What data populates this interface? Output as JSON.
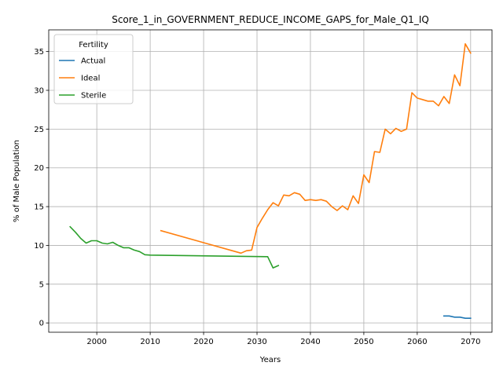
{
  "chart_data": {
    "type": "line",
    "title": "Score_1_in_GOVERNMENT_REDUCE_INCOME_GAPS_for_Male_Q1_IQ",
    "xlabel": "Years",
    "ylabel": "% of Male Population",
    "xlim": [
      1991,
      2074
    ],
    "ylim": [
      -1.2,
      37.8
    ],
    "x_ticks": [
      2000,
      2010,
      2020,
      2030,
      2040,
      2050,
      2060,
      2070
    ],
    "y_ticks": [
      0,
      5,
      10,
      15,
      20,
      25,
      30,
      35
    ],
    "grid": true,
    "legend": {
      "title": "Fertility",
      "placement": "top-left"
    },
    "series": [
      {
        "name": "Actual",
        "color": "#1f77b4",
        "x": [
          2065,
          2066,
          2067,
          2068,
          2069,
          2070
        ],
        "y": [
          0.9,
          0.9,
          0.75,
          0.75,
          0.6,
          0.6
        ]
      },
      {
        "name": "Ideal",
        "color": "#ff7f0e",
        "x": [
          2012,
          2027,
          2028,
          2029,
          2030,
          2031,
          2032,
          2033,
          2034,
          2035,
          2036,
          2037,
          2038,
          2039,
          2040,
          2041,
          2042,
          2043,
          2044,
          2045,
          2046,
          2047,
          2048,
          2049,
          2050,
          2051,
          2052,
          2053,
          2054,
          2055,
          2056,
          2057,
          2058,
          2059,
          2060,
          2061,
          2062,
          2063,
          2064,
          2065,
          2066,
          2067,
          2068,
          2069,
          2070
        ],
        "y": [
          11.9,
          9.0,
          9.3,
          9.4,
          12.3,
          13.5,
          14.6,
          15.5,
          15.1,
          16.5,
          16.4,
          16.8,
          16.6,
          15.8,
          15.9,
          15.8,
          15.9,
          15.7,
          15.0,
          14.5,
          15.1,
          14.6,
          16.4,
          15.4,
          19.1,
          18.1,
          22.1,
          22.0,
          25.0,
          24.4,
          25.1,
          24.7,
          25.0,
          29.7,
          29.0,
          28.8,
          28.6,
          28.6,
          28.0,
          29.2,
          28.3,
          32.0,
          30.6,
          36.0,
          34.8
        ]
      },
      {
        "name": "Sterile",
        "color": "#2ca02c",
        "x": [
          1995,
          1996,
          1997,
          1998,
          1999,
          2000,
          2001,
          2002,
          2003,
          2004,
          2005,
          2006,
          2007,
          2008,
          2009,
          2010,
          2032,
          2033,
          2034
        ],
        "y": [
          12.4,
          11.7,
          10.9,
          10.3,
          10.6,
          10.6,
          10.3,
          10.2,
          10.4,
          10.0,
          9.7,
          9.7,
          9.4,
          9.2,
          8.8,
          8.75,
          8.55,
          7.1,
          7.4
        ]
      }
    ]
  }
}
